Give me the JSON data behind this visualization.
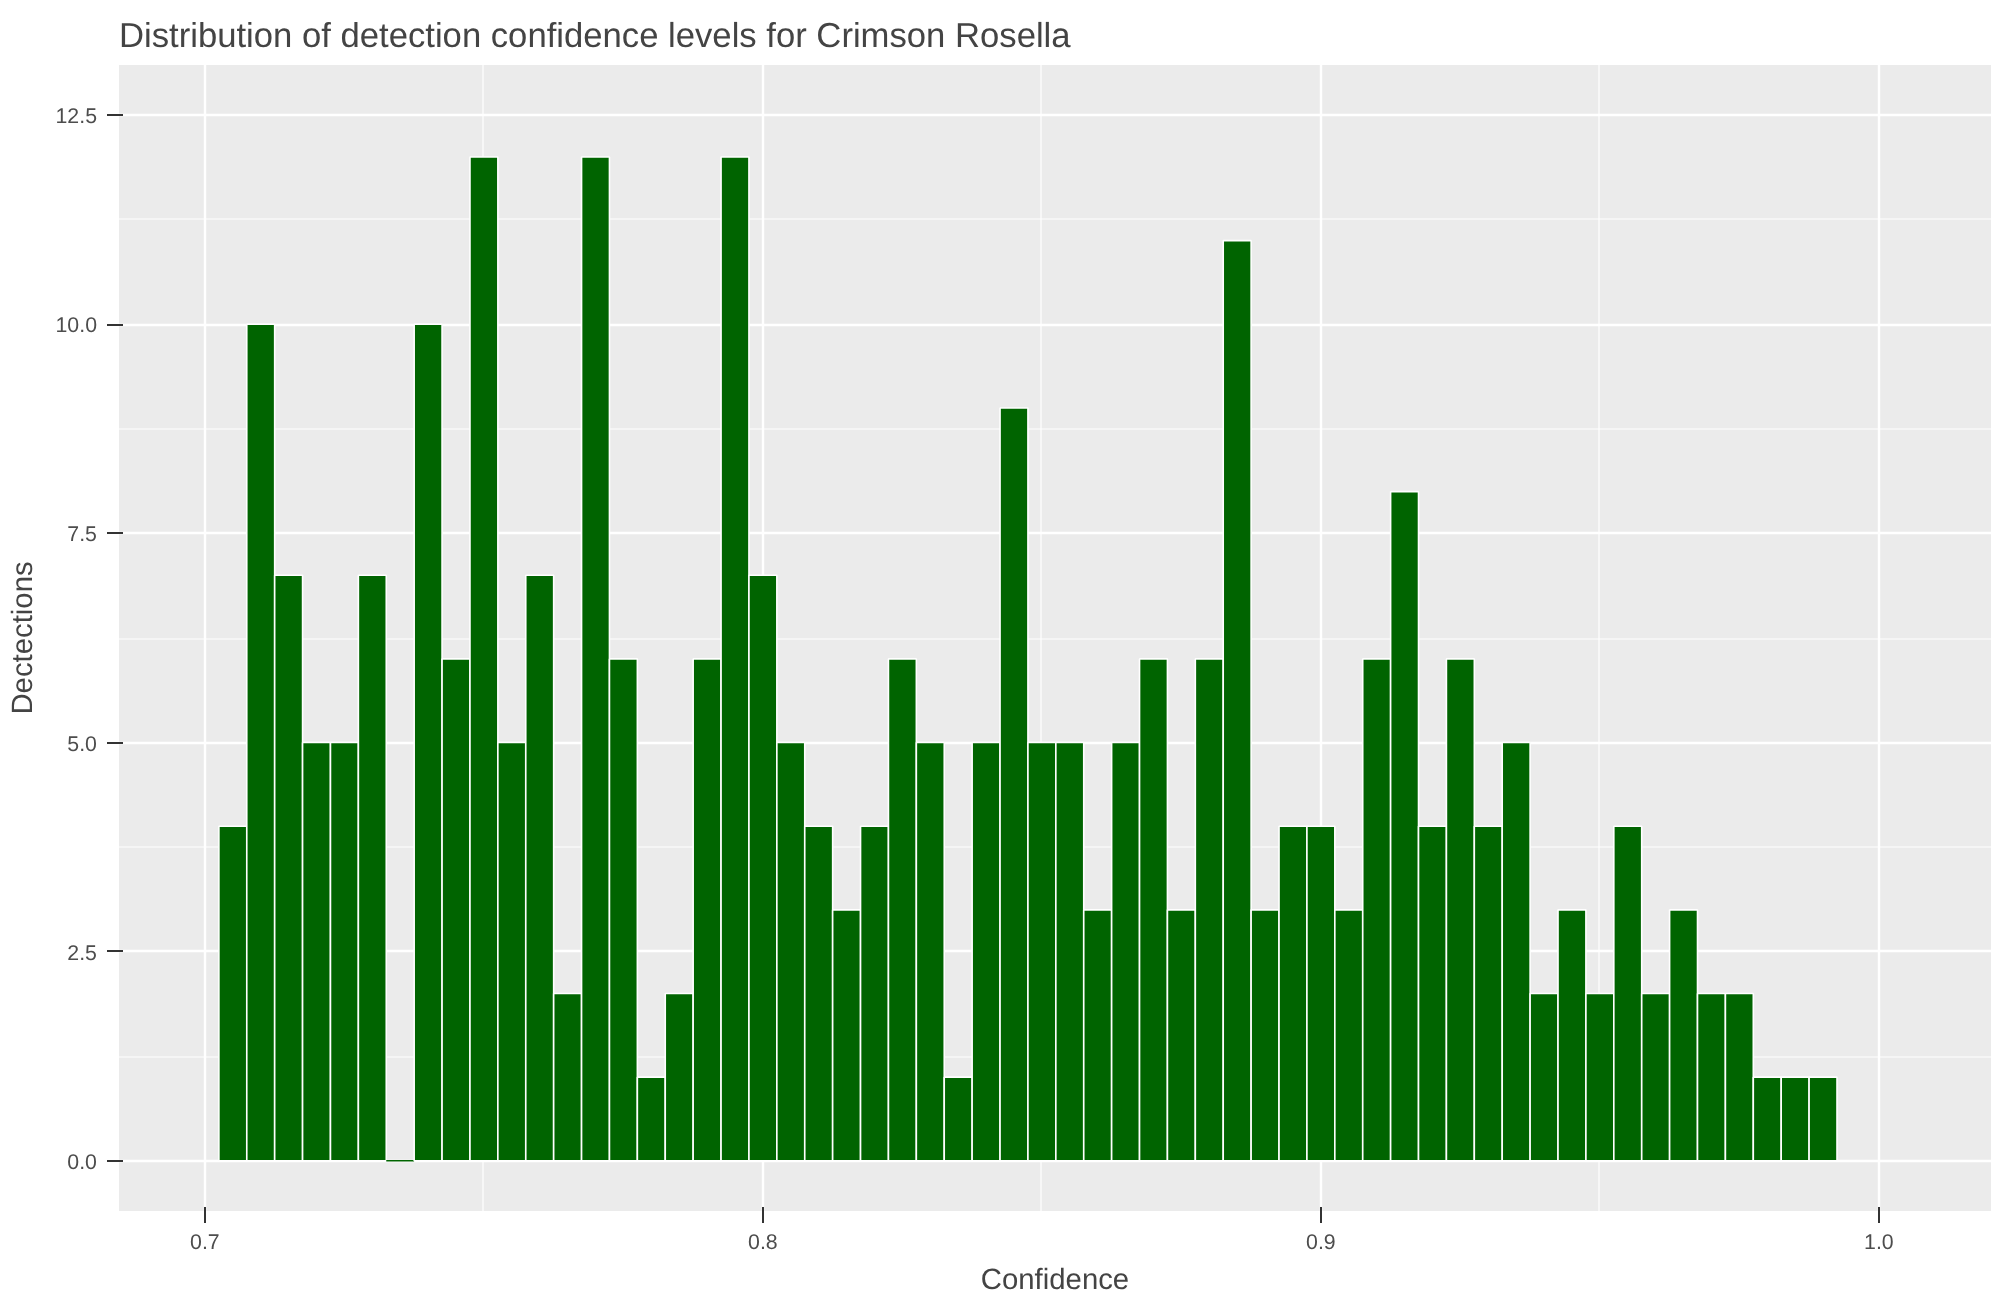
{
  "chart_data": {
    "type": "histogram",
    "title": "Distribution of detection confidence levels for Crimson Rosella",
    "xlabel": "Confidence",
    "ylabel": "Dectections",
    "bins": [
      0.7025,
      0.7075,
      0.7125,
      0.7175,
      0.7225,
      0.7275,
      0.7325,
      0.7375,
      0.7425,
      0.7475,
      0.7525,
      0.7575,
      0.7625,
      0.7675,
      0.7725,
      0.7775,
      0.7825,
      0.7875,
      0.7925,
      0.7975,
      0.8025,
      0.8075,
      0.8125,
      0.8175,
      0.8225,
      0.8275,
      0.8325,
      0.8375,
      0.8425,
      0.8475,
      0.8525,
      0.8575,
      0.8625,
      0.8675,
      0.8725,
      0.8775,
      0.8825,
      0.8875,
      0.8925,
      0.8975,
      0.9025,
      0.9075,
      0.9125,
      0.9175,
      0.9225,
      0.9275,
      0.9325,
      0.9375,
      0.9425,
      0.9475,
      0.9525,
      0.9575,
      0.9625,
      0.9675,
      0.9725,
      0.9775,
      0.9825,
      0.9875,
      0.9925
    ],
    "values": [
      4,
      10,
      7,
      5,
      5,
      7,
      0,
      10,
      6,
      12,
      5,
      7,
      2,
      12,
      6,
      1,
      2,
      6,
      12,
      7,
      5,
      4,
      3,
      4,
      6,
      5,
      1,
      5,
      9,
      5,
      5,
      3,
      5,
      6,
      3,
      6,
      11,
      3,
      4,
      4,
      3,
      6,
      8,
      4,
      6,
      4,
      5,
      2,
      3,
      2,
      4,
      2,
      3,
      2,
      2,
      1,
      1,
      1
    ],
    "color": "#006400",
    "xlim": [
      0.6846,
      1.0201
    ],
    "ylim": [
      -0.6,
      13.1
    ],
    "xticks": [
      0.7,
      0.8,
      0.9,
      {
        "value": 1.0,
        "label": "1.0"
      }
    ],
    "yticks": [
      {
        "value": 0,
        "label": "0.0"
      },
      {
        "value": 2.5,
        "label": "2.5"
      },
      {
        "value": 5,
        "label": "5.0"
      },
      {
        "value": 7.5,
        "label": "7.5"
      },
      {
        "value": 10,
        "label": "10.0"
      },
      {
        "value": 12.5,
        "label": "12.5"
      }
    ],
    "grid": true
  }
}
